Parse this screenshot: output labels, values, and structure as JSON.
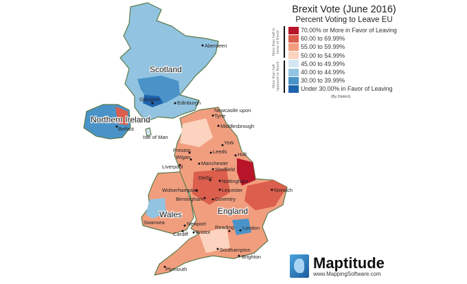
{
  "legend": {
    "title": "Brexit Vote (June 2016)",
    "subtitle": "Percent Voting to Leave EU",
    "side_label_leave": "More than half in favor of Brexit",
    "side_label_remain": "More than half opposed to Brexit",
    "note": "(By District)",
    "items": [
      {
        "label": "70.00% or More in Favor of Leaving",
        "color": "#b9152a"
      },
      {
        "label": "60.00 to 69.99%",
        "color": "#dc5e4c"
      },
      {
        "label": "55.00 to 59.99%",
        "color": "#f19e7f"
      },
      {
        "label": "50.00 to 54.99%",
        "color": "#fbd3bf"
      },
      {
        "label": "45.00 to 49.99%",
        "color": "#d4e6f2"
      },
      {
        "label": "40.00 to 44.99%",
        "color": "#92c3e0"
      },
      {
        "label": "30.00 to 39.99%",
        "color": "#4a93c8"
      },
      {
        "label": "Under 30.00% in Favor of Leaving",
        "color": "#1f63ad"
      }
    ]
  },
  "regions": {
    "scotland": "Scotland",
    "northern_ireland": "Northern Ireland",
    "wales": "Wales",
    "england": "England",
    "isle_of_man": "Isle of Man"
  },
  "cities": [
    "Aberdeen",
    "Glasgow",
    "Edinburgh",
    "Belfast",
    "Newcastle upon",
    "Tyne",
    "Middlesbrough",
    "York",
    "Hull",
    "Preston",
    "Leeds",
    "Wigan",
    "Manchester",
    "Liverpool",
    "Sheffield",
    "Derby",
    "Nottingham",
    "Leicester",
    "Wolverhampton",
    "Norwich",
    "Birmingham",
    "Coventry",
    "Newport",
    "Reading",
    "London",
    "Swansea",
    "Bristol",
    "Cardiff",
    "Southampton",
    "Brighton",
    "Plymouth"
  ],
  "logo": {
    "name": "Maptitude",
    "url": "www.MappingSoftware.com"
  }
}
